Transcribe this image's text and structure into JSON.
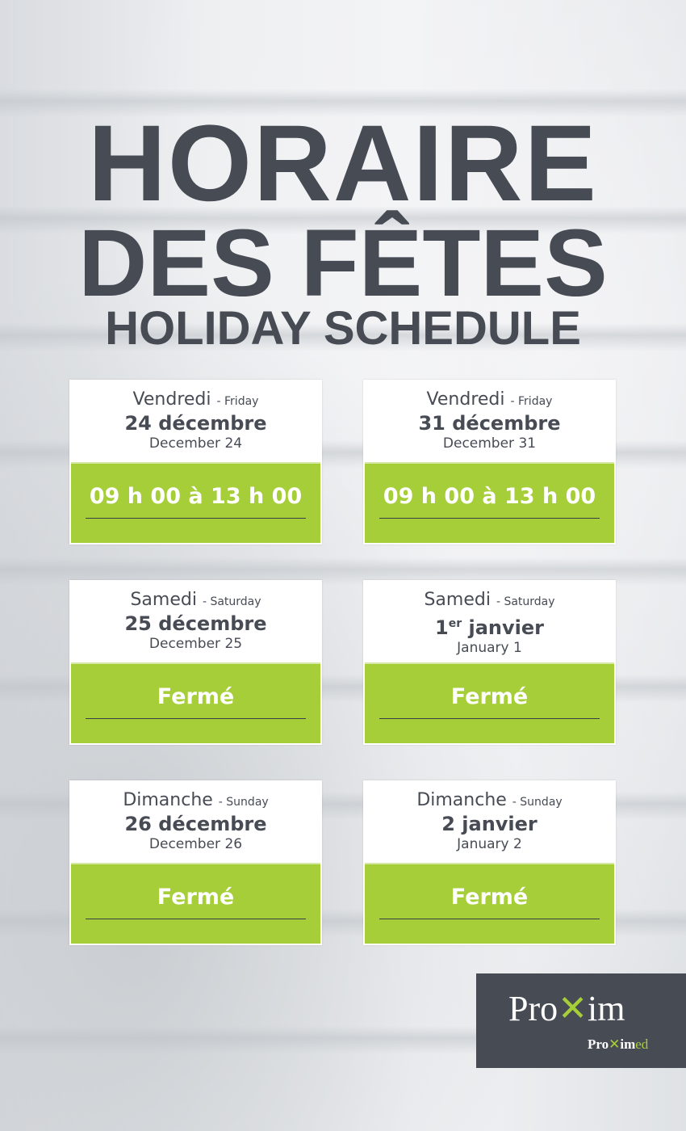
{
  "title": {
    "line1": "HORAIRE",
    "line2": "DES FÊTES",
    "line3": "HOLIDAY SCHEDULE"
  },
  "cards": [
    {
      "day_fr": "Vendredi",
      "day_en": "- Friday",
      "date_fr": "24 décembre",
      "date_en": "December 24",
      "hours": "09 h 00 à 13 h 00"
    },
    {
      "day_fr": "Vendredi",
      "day_en": "- Friday",
      "date_fr": "31 décembre",
      "date_en": "December 31",
      "hours": "09 h 00 à 13 h 00"
    },
    {
      "day_fr": "Samedi",
      "day_en": "- Saturday",
      "date_fr": "25 décembre",
      "date_en": "December 25",
      "hours": "Fermé"
    },
    {
      "day_fr": "Samedi",
      "day_en": "- Saturday",
      "date_num": "1",
      "date_sup": "er",
      "date_rest": " janvier",
      "date_en": "January 1",
      "hours": "Fermé"
    },
    {
      "day_fr": "Dimanche",
      "day_en": "- Sunday",
      "date_fr": "26 décembre",
      "date_en": "December 26",
      "hours": "Fermé"
    },
    {
      "day_fr": "Dimanche",
      "day_en": "- Sunday",
      "date_fr": "2 janvier",
      "date_en": "January 2",
      "hours": "Fermé"
    }
  ],
  "logo": {
    "brand": "Proxim",
    "sub": "Proximed"
  },
  "colors": {
    "green": "#a6ce39",
    "dark": "#474b54"
  }
}
